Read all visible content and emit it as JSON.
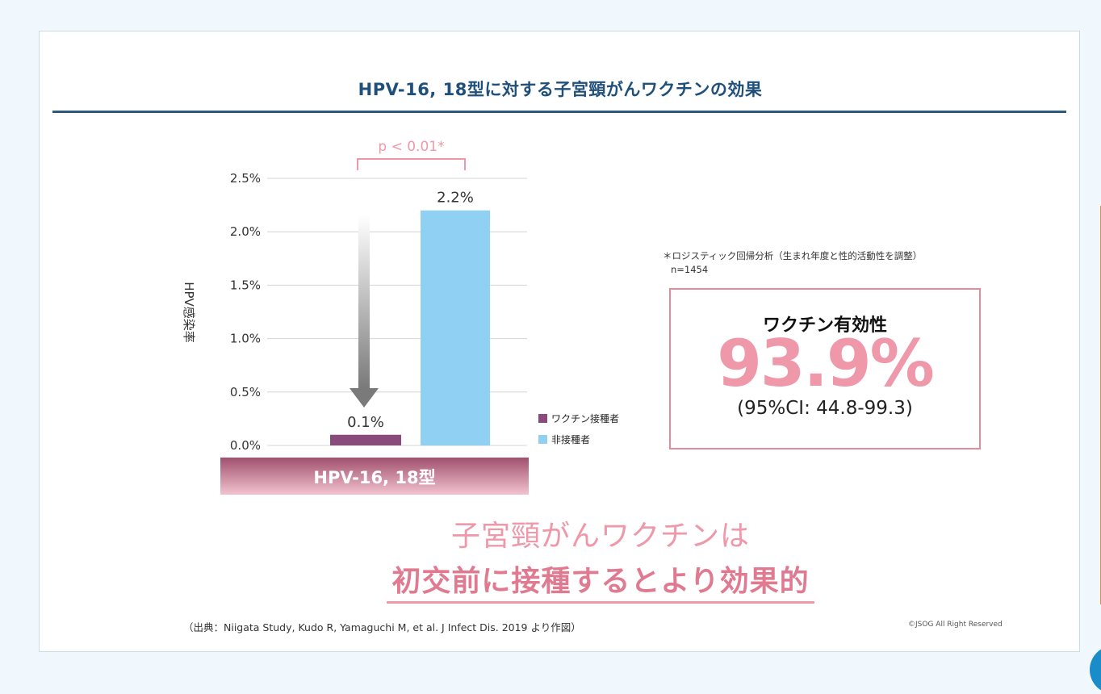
{
  "title": "HPV-16, 18型に対する子宮頸がんワクチンの効果",
  "chart_data": {
    "type": "bar",
    "categories": [
      "HPV-16, 18型"
    ],
    "series": [
      {
        "name": "ワクチン接種者",
        "values": [
          0.1
        ],
        "color": "#8b4a7c",
        "label": "0.1%"
      },
      {
        "name": "非接種者",
        "values": [
          2.2
        ],
        "color": "#8fd0f3",
        "label": "2.2%"
      }
    ],
    "ylabel": "HPV感染率",
    "ylim": [
      0,
      2.5
    ],
    "yticks": [
      "0.0%",
      "0.5%",
      "1.0%",
      "1.5%",
      "2.0%",
      "2.5%"
    ],
    "category_label": "HPV-16, 18型",
    "significance": "p < 0.01*",
    "grid": true,
    "legend": "right"
  },
  "stat_note": {
    "method": "＊ロジスティック回帰分析（生まれ年度と性的活動性を調整）",
    "n": "n=1454"
  },
  "effectiveness": {
    "label": "ワクチン有効性",
    "value": "93.9%",
    "ci": "(95%CI: 44.8-99.3)"
  },
  "message": {
    "line1": "子宮頸がんワクチンは",
    "line2": "初交前に接種するとより効果的"
  },
  "source": "（出典：Niigata Study, Kudo R, Yamaguchi M, et al. J Infect Dis. 2019 より作図）",
  "copyright": "©JSOG All Right Reserved",
  "colors": {
    "title": "#1f4f7a",
    "accent_pink": "#ee98aa",
    "vaccinated": "#8b4a7c",
    "unvaccinated": "#8fd0f3"
  }
}
